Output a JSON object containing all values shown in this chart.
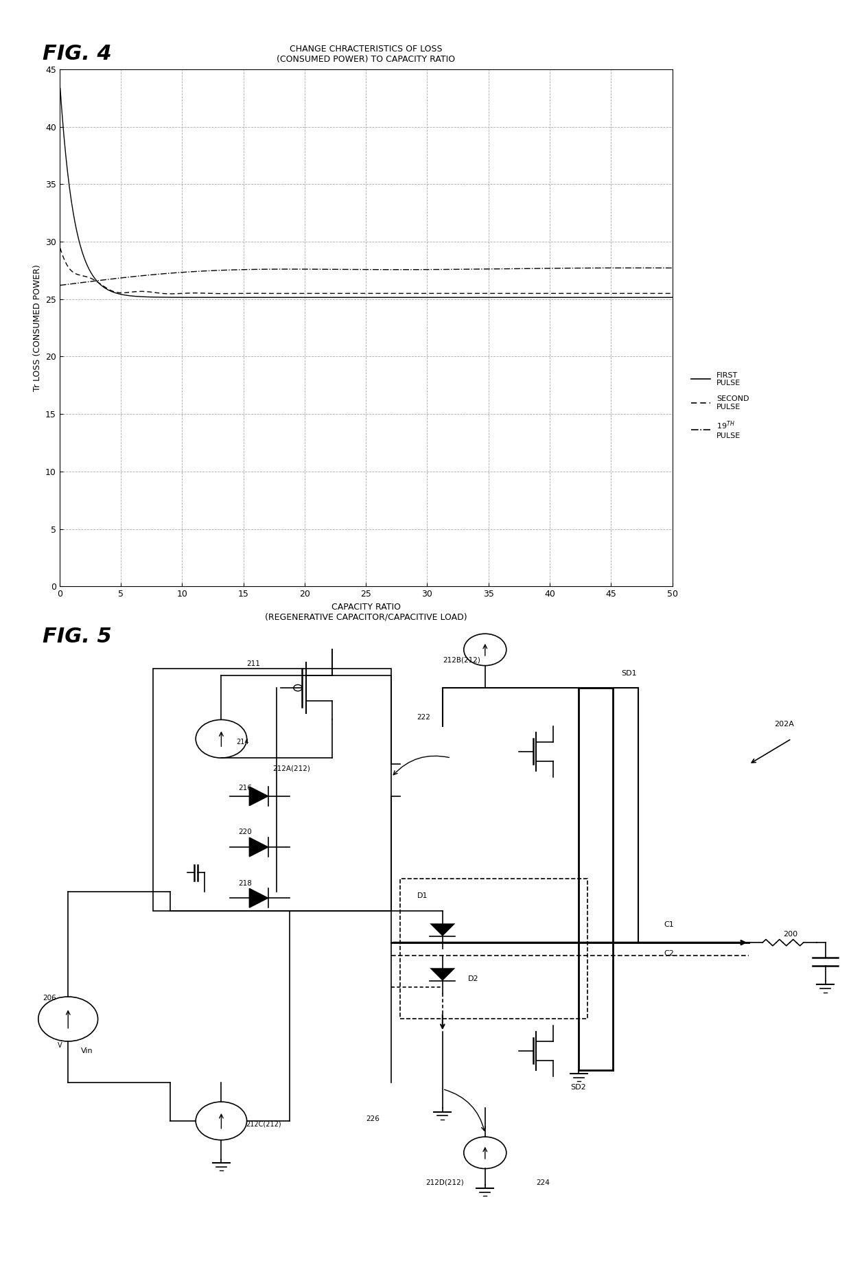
{
  "fig4_title": "FIG. 4",
  "fig5_title": "FIG. 5",
  "chart_title_line1": "CHANGE CHRACTERISTICS OF LOSS",
  "chart_title_line2": "(CONSUMED POWER) TO CAPACITY RATIO",
  "ylabel": "Tr LOSS (CONSUMED POWER)",
  "xlabel_line1": "CAPACITY RATIO",
  "xlabel_line2": "(REGENERATIVE CAPACITOR/CAPACITIVE LOAD)",
  "xlim": [
    0,
    50
  ],
  "ylim": [
    0,
    45
  ],
  "xticks": [
    0,
    5,
    10,
    15,
    20,
    25,
    30,
    35,
    40,
    45,
    50
  ],
  "yticks": [
    0,
    5,
    10,
    15,
    20,
    25,
    30,
    35,
    40,
    45
  ],
  "legend_first": "FIRST\nPULSE",
  "legend_second": "SECOND\nPULSE",
  "legend_19th": "19TH\nPULSE",
  "bg_color": "#ffffff",
  "line_color": "#000000",
  "grid_color": "#aaaaaa"
}
